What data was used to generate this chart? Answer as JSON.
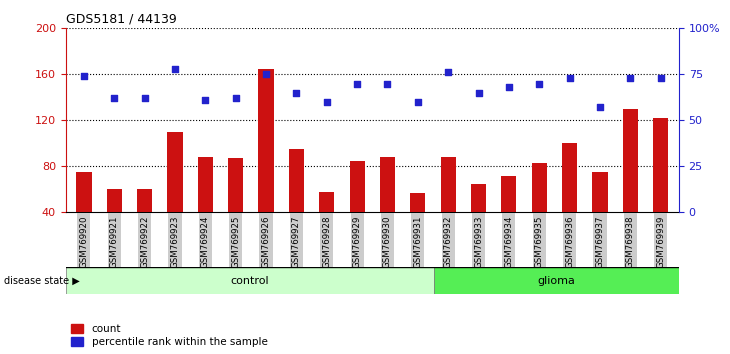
{
  "title": "GDS5181 / 44139",
  "samples": [
    "GSM769920",
    "GSM769921",
    "GSM769922",
    "GSM769923",
    "GSM769924",
    "GSM769925",
    "GSM769926",
    "GSM769927",
    "GSM769928",
    "GSM769929",
    "GSM769930",
    "GSM769931",
    "GSM769932",
    "GSM769933",
    "GSM769934",
    "GSM769935",
    "GSM769936",
    "GSM769937",
    "GSM769938",
    "GSM769939"
  ],
  "bar_values": [
    75,
    60,
    60,
    110,
    88,
    87,
    165,
    95,
    58,
    85,
    88,
    57,
    88,
    65,
    72,
    83,
    100,
    75,
    130,
    122
  ],
  "dot_values_pct": [
    74,
    62,
    62,
    78,
    61,
    62,
    75,
    65,
    60,
    70,
    70,
    60,
    76,
    65,
    68,
    70,
    73,
    57,
    73,
    73
  ],
  "ylim_left": [
    40,
    200
  ],
  "ylim_right": [
    0,
    100
  ],
  "yticks_left": [
    40,
    80,
    120,
    160,
    200
  ],
  "yticks_right": [
    0,
    25,
    50,
    75,
    100
  ],
  "ytick_labels_right": [
    "0",
    "25",
    "50",
    "75",
    "100%"
  ],
  "control_count": 12,
  "glioma_count": 8,
  "bar_color": "#CC1111",
  "dot_color": "#2222CC",
  "legend_count_label": "count",
  "legend_pct_label": "percentile rank within the sample",
  "control_label": "control",
  "glioma_label": "glioma",
  "disease_state_label": "disease state",
  "control_bg": "#CCFFCC",
  "glioma_bg": "#55EE55",
  "tick_bg": "#CCCCCC",
  "grid_color": "black"
}
